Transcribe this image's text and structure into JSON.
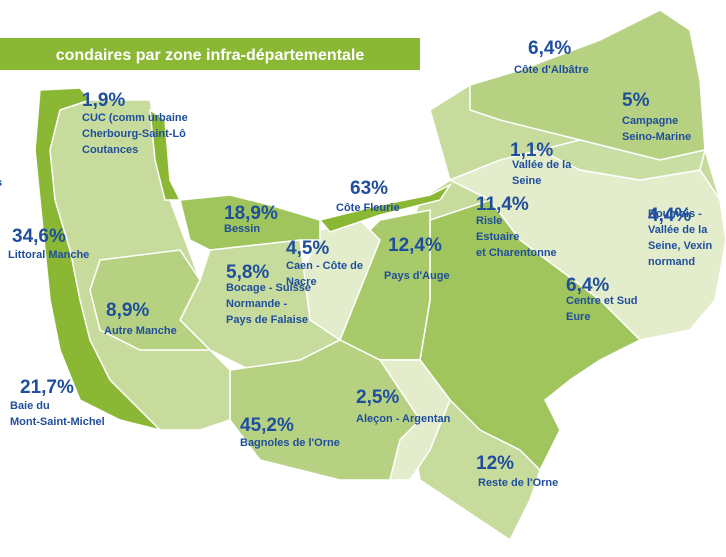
{
  "header": {
    "title": "condaires par zone infra-départementale",
    "fragment": "s"
  },
  "zones": [
    {
      "value": "6,4%",
      "lines": [
        "Côte d'Albâtre"
      ]
    },
    {
      "value": "5%",
      "lines": [
        "Campagne",
        "Seino-Marine"
      ]
    },
    {
      "value": "1,1%",
      "lines": [
        "Vallée de la",
        "Seine"
      ]
    },
    {
      "value": "63%",
      "lines": [
        "Côte Fleurie"
      ]
    },
    {
      "value": "11,4%",
      "lines": [
        "Risle",
        "Estuaire",
        "et Charentonne"
      ]
    },
    {
      "value": "4,4%",
      "lines": [
        "Roumois -",
        "Vallée de la",
        "Seine, Vexin",
        "normand"
      ]
    },
    {
      "value": "18,9%",
      "lines": [
        "Bessin"
      ]
    },
    {
      "value": "1,9%",
      "lines": [
        "CUC (comm urbaine",
        "Cherbourg-Saint-Lô",
        "Coutances"
      ]
    },
    {
      "value": "34,6%",
      "lines": [
        "Littoral Manche"
      ]
    },
    {
      "value": "4,5%",
      "lines": [
        "Caen - Côte de",
        "Nacre"
      ]
    },
    {
      "value": "12,4%",
      "lines": [
        "Pays d'Auge"
      ]
    },
    {
      "value": "5,8%",
      "lines": [
        "Bocage - Suisse",
        "Normande -",
        "Pays de Falaise"
      ]
    },
    {
      "value": "8,9%",
      "lines": [
        "Autre Manche"
      ]
    },
    {
      "value": "6,4%",
      "lines": [
        "Centre et Sud",
        "Eure"
      ]
    },
    {
      "value": "21,7%",
      "lines": [
        "Baie du",
        "Mont-Saint-Michel"
      ]
    },
    {
      "value": "2,5%",
      "lines": [
        "Aleçon - Argentan"
      ]
    },
    {
      "value": "45,2%",
      "lines": [
        "Bagnoles de l'Orne"
      ]
    },
    {
      "value": "12%",
      "lines": [
        "Reste de l'Orne"
      ]
    }
  ]
}
